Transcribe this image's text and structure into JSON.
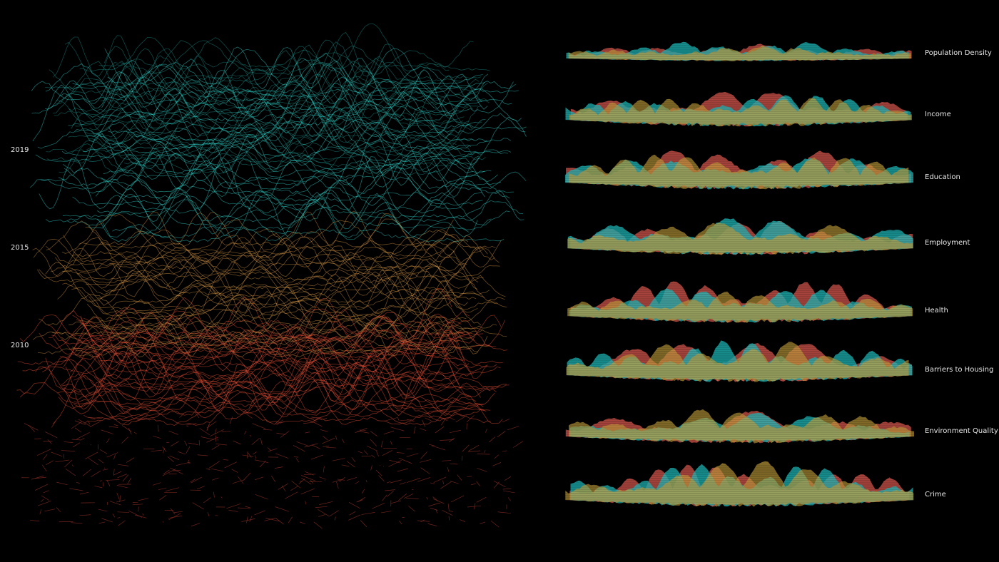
{
  "years": [
    "2019",
    "2015",
    "2010"
  ],
  "indicators": [
    "Population Density",
    "Income",
    "Education",
    "Employment",
    "Health",
    "Barriers to Housing",
    "Environment Quality",
    "Crime"
  ]
}
